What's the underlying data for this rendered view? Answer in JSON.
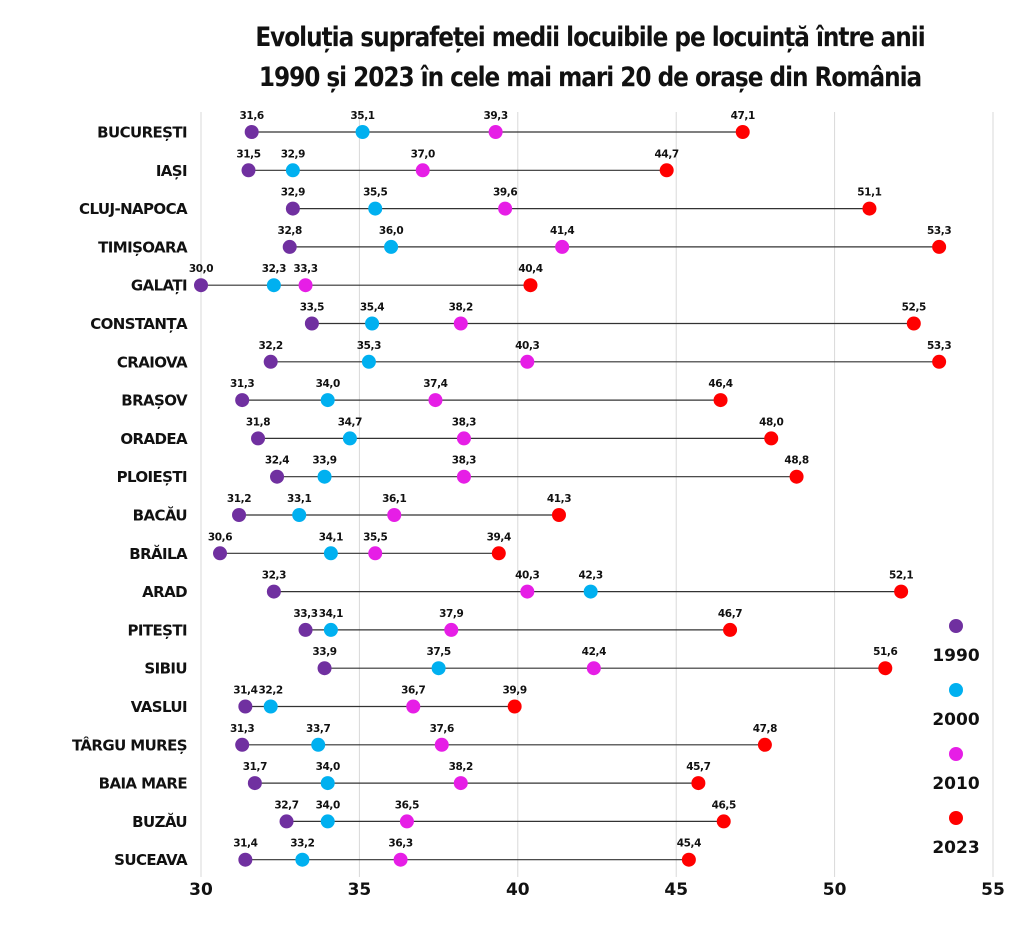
{
  "chart_data": {
    "type": "dot-plot",
    "title": "Evoluția suprafeței medii locuibile pe locuință între anii 1990 și 2023 în cele mai mari 20 de orașe din România",
    "xlabel": "",
    "ylabel": "",
    "xlim": [
      30,
      55
    ],
    "xticks": [
      "30",
      "35",
      "40",
      "45",
      "50",
      "55"
    ],
    "grid": "vertical",
    "legend_position": "right",
    "categories": [
      "BUCUREȘTI",
      "IAȘI",
      "CLUJ-NAPOCA",
      "TIMIȘOARA",
      "GALAȚI",
      "CONSTANȚA",
      "CRAIOVA",
      "BRAȘOV",
      "ORADEA",
      "PLOIEȘTI",
      "BACĂU",
      "BRĂILA",
      "ARAD",
      "PITEȘTI",
      "SIBIU",
      "VASLUI",
      "TÂRGU MUREȘ",
      "BAIA MARE",
      "BUZĂU",
      "SUCEAVA"
    ],
    "series": [
      {
        "name": "1990",
        "color": "#7030a0",
        "values": [
          31.6,
          31.5,
          32.9,
          32.8,
          30.0,
          33.5,
          32.2,
          31.3,
          31.8,
          32.4,
          31.2,
          30.6,
          32.3,
          33.3,
          33.9,
          31.4,
          31.3,
          31.7,
          32.7,
          31.4
        ]
      },
      {
        "name": "2000",
        "color": "#00b0f0",
        "values": [
          35.1,
          32.9,
          35.5,
          36.0,
          32.3,
          35.4,
          35.3,
          34.0,
          34.7,
          33.9,
          33.1,
          34.1,
          42.3,
          34.1,
          37.5,
          32.2,
          33.7,
          34.0,
          34.0,
          33.2
        ]
      },
      {
        "name": "2010",
        "color": "#e61ee6",
        "values": [
          39.3,
          37.0,
          39.6,
          41.4,
          33.3,
          38.2,
          40.3,
          37.4,
          38.3,
          38.3,
          36.1,
          35.5,
          40.3,
          37.9,
          42.4,
          36.7,
          37.6,
          38.2,
          36.5,
          36.3
        ]
      },
      {
        "name": "2023",
        "color": "#ff0000",
        "values": [
          47.1,
          44.7,
          51.1,
          53.3,
          40.4,
          52.5,
          53.3,
          46.4,
          48.0,
          48.8,
          41.3,
          39.4,
          52.1,
          46.7,
          51.6,
          39.9,
          47.8,
          45.7,
          46.5,
          45.4
        ]
      }
    ],
    "value_labels": [
      [
        "31,6",
        "35,1",
        "39,3",
        "47,1"
      ],
      [
        "31,5",
        "32,9",
        "37,0",
        "44,7"
      ],
      [
        "32,9",
        "35,5",
        "39,6",
        "51,1"
      ],
      [
        "32,8",
        "36,0",
        "41,4",
        "53,3"
      ],
      [
        "30,0",
        "32,3",
        "33,3",
        "40,4"
      ],
      [
        "33,5",
        "35,4",
        "38,2",
        "52,5"
      ],
      [
        "32,2",
        "35,3",
        "40,3",
        "53,3"
      ],
      [
        "31,3",
        "34,0",
        "37,4",
        "46,4"
      ],
      [
        "31,8",
        "34,7",
        "38,3",
        "48,0"
      ],
      [
        "32,4",
        "33,9",
        "38,3",
        "48,8"
      ],
      [
        "31,2",
        "33,1",
        "36,1",
        "41,3"
      ],
      [
        "30,6",
        "34,1",
        "35,5",
        "39,4"
      ],
      [
        "32,3",
        "42,3",
        "40,3",
        "52,1"
      ],
      [
        "33,3",
        "34,1",
        "37,9",
        "46,7"
      ],
      [
        "33,9",
        "37,5",
        "42,4",
        "51,6"
      ],
      [
        "31,4",
        "32,2",
        "36,7",
        "39,9"
      ],
      [
        "31,3",
        "33,7",
        "37,6",
        "47,8"
      ],
      [
        "31,7",
        "34,0",
        "38,2",
        "45,7"
      ],
      [
        "32,7",
        "34,0",
        "36,5",
        "46,5"
      ],
      [
        "31,4",
        "33,2",
        "36,3",
        "45,4"
      ]
    ]
  }
}
